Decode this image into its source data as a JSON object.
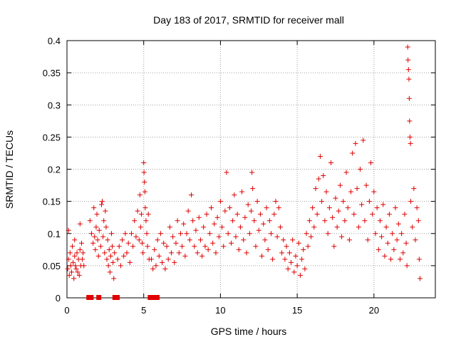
{
  "chart_data": {
    "type": "scatter",
    "title": "Day 183 of 2017, SRMTID for receiver mall",
    "xlabel": "GPS time / hours",
    "ylabel": "SRMTID / TECUs",
    "xlim": [
      0,
      24
    ],
    "ylim": [
      0,
      0.4
    ],
    "x_ticks": [
      0,
      5,
      10,
      15,
      20
    ],
    "x_tick_labels": [
      "0",
      "5",
      "10",
      "15",
      "20"
    ],
    "y_ticks": [
      0,
      0.05,
      0.1,
      0.15,
      0.2,
      0.25,
      0.3,
      0.35,
      0.4
    ],
    "y_tick_labels": [
      "0",
      "0.05",
      "0.1",
      "0.15",
      "0.2",
      "0.25",
      "0.3",
      "0.35",
      "0.4"
    ],
    "grid": true,
    "marker": "+",
    "series": [
      {
        "name": "SRMTID",
        "color": "#e00000",
        "points": [
          [
            0.05,
            0.045
          ],
          [
            0.1,
            0.06
          ],
          [
            0.15,
            0.035
          ],
          [
            0.2,
            0.07
          ],
          [
            0.25,
            0.05
          ],
          [
            0.3,
            0.04
          ],
          [
            0.35,
            0.08
          ],
          [
            0.4,
            0.055
          ],
          [
            0.45,
            0.03
          ],
          [
            0.5,
            0.065
          ],
          [
            0.55,
            0.05
          ],
          [
            0.6,
            0.045
          ],
          [
            0.65,
            0.07
          ],
          [
            0.7,
            0.04
          ],
          [
            0.75,
            0.06
          ],
          [
            0.8,
            0.035
          ],
          [
            0.85,
            0.075
          ],
          [
            0.9,
            0.05
          ],
          [
            0.95,
            0.085
          ],
          [
            1.0,
            0.06
          ],
          [
            0.1,
            0.105
          ],
          [
            0.5,
            0.09
          ],
          [
            0.85,
            0.115
          ],
          [
            1.05,
            0.07
          ],
          [
            1.1,
            0.05
          ],
          [
            1.5,
            0.12
          ],
          [
            1.6,
            0.1
          ],
          [
            1.7,
            0.085
          ],
          [
            1.75,
            0.14
          ],
          [
            1.8,
            0.095
          ],
          [
            1.85,
            0.075
          ],
          [
            1.9,
            0.11
          ],
          [
            1.95,
            0.13
          ],
          [
            2.0,
            0.09
          ],
          [
            2.05,
            0.065
          ],
          [
            2.1,
            0.105
          ],
          [
            2.2,
            0.08
          ],
          [
            2.25,
            0.145
          ],
          [
            2.3,
            0.15
          ],
          [
            2.35,
            0.095
          ],
          [
            2.4,
            0.12
          ],
          [
            2.45,
            0.07
          ],
          [
            2.5,
            0.135
          ],
          [
            2.55,
            0.11
          ],
          [
            2.6,
            0.06
          ],
          [
            2.65,
            0.09
          ],
          [
            2.7,
            0.05
          ],
          [
            2.75,
            0.075
          ],
          [
            2.8,
            0.04
          ],
          [
            2.85,
            0.065
          ],
          [
            2.9,
            0.1
          ],
          [
            2.95,
            0.08
          ],
          [
            3.0,
            0.055
          ],
          [
            3.05,
            0.03
          ],
          [
            3.1,
            0.07
          ],
          [
            3.3,
            0.06
          ],
          [
            3.4,
            0.08
          ],
          [
            3.5,
            0.05
          ],
          [
            3.6,
            0.09
          ],
          [
            3.7,
            0.065
          ],
          [
            3.8,
            0.1
          ],
          [
            3.9,
            0.07
          ],
          [
            4.0,
            0.085
          ],
          [
            4.1,
            0.055
          ],
          [
            4.2,
            0.1
          ],
          [
            4.3,
            0.08
          ],
          [
            4.4,
            0.12
          ],
          [
            4.5,
            0.095
          ],
          [
            4.6,
            0.135
          ],
          [
            4.7,
            0.09
          ],
          [
            4.75,
            0.16
          ],
          [
            4.8,
            0.11
          ],
          [
            4.85,
            0.13
          ],
          [
            4.9,
            0.085
          ],
          [
            4.95,
            0.07
          ],
          [
            5.0,
            0.21
          ],
          [
            5.02,
            0.195
          ],
          [
            5.05,
            0.18
          ],
          [
            5.08,
            0.165
          ],
          [
            5.1,
            0.14
          ],
          [
            5.15,
            0.12
          ],
          [
            5.2,
            0.1
          ],
          [
            5.25,
            0.08
          ],
          [
            5.3,
            0.13
          ],
          [
            5.35,
            0.06
          ],
          [
            5.5,
            0.06
          ],
          [
            5.6,
            0.045
          ],
          [
            5.7,
            0.075
          ],
          [
            5.8,
            0.05
          ],
          [
            5.9,
            0.09
          ],
          [
            6.0,
            0.065
          ],
          [
            6.1,
            0.1
          ],
          [
            6.2,
            0.055
          ],
          [
            6.3,
            0.085
          ],
          [
            6.4,
            0.045
          ],
          [
            6.5,
            0.08
          ],
          [
            6.6,
            0.06
          ],
          [
            6.7,
            0.11
          ],
          [
            6.8,
            0.07
          ],
          [
            6.9,
            0.095
          ],
          [
            7.0,
            0.055
          ],
          [
            7.1,
            0.085
          ],
          [
            7.2,
            0.12
          ],
          [
            7.3,
            0.07
          ],
          [
            7.4,
            0.1
          ],
          [
            7.5,
            0.08
          ],
          [
            7.6,
            0.115
          ],
          [
            7.7,
            0.065
          ],
          [
            7.8,
            0.1
          ],
          [
            7.9,
            0.135
          ],
          [
            8.0,
            0.09
          ],
          [
            8.1,
            0.16
          ],
          [
            8.2,
            0.12
          ],
          [
            8.3,
            0.08
          ],
          [
            8.4,
            0.105
          ],
          [
            8.5,
            0.07
          ],
          [
            8.6,
            0.125
          ],
          [
            8.7,
            0.09
          ],
          [
            8.8,
            0.065
          ],
          [
            8.9,
            0.11
          ],
          [
            9.0,
            0.08
          ],
          [
            9.1,
            0.13
          ],
          [
            9.2,
            0.075
          ],
          [
            9.3,
            0.1
          ],
          [
            9.4,
            0.14
          ],
          [
            9.5,
            0.085
          ],
          [
            9.6,
            0.115
          ],
          [
            9.7,
            0.07
          ],
          [
            9.8,
            0.125
          ],
          [
            9.9,
            0.095
          ],
          [
            10.0,
            0.15
          ],
          [
            10.1,
            0.11
          ],
          [
            10.2,
            0.08
          ],
          [
            10.3,
            0.135
          ],
          [
            10.4,
            0.195
          ],
          [
            10.5,
            0.1
          ],
          [
            10.6,
            0.14
          ],
          [
            10.7,
            0.085
          ],
          [
            10.8,
            0.12
          ],
          [
            10.9,
            0.16
          ],
          [
            11.0,
            0.095
          ],
          [
            11.1,
            0.13
          ],
          [
            11.2,
            0.075
          ],
          [
            11.3,
            0.11
          ],
          [
            11.4,
            0.165
          ],
          [
            11.5,
            0.09
          ],
          [
            11.6,
            0.125
          ],
          [
            11.7,
            0.07
          ],
          [
            11.8,
            0.145
          ],
          [
            11.9,
            0.1
          ],
          [
            12.0,
            0.135
          ],
          [
            12.05,
            0.195
          ],
          [
            12.1,
            0.17
          ],
          [
            12.2,
            0.12
          ],
          [
            12.3,
            0.08
          ],
          [
            12.4,
            0.15
          ],
          [
            12.5,
            0.105
          ],
          [
            12.6,
            0.13
          ],
          [
            12.7,
            0.065
          ],
          [
            12.8,
            0.115
          ],
          [
            12.9,
            0.09
          ],
          [
            13.0,
            0.14
          ],
          [
            13.1,
            0.075
          ],
          [
            13.2,
            0.12
          ],
          [
            13.3,
            0.1
          ],
          [
            13.4,
            0.06
          ],
          [
            13.5,
            0.13
          ],
          [
            13.6,
            0.15
          ],
          [
            13.7,
            0.095
          ],
          [
            13.8,
            0.14
          ],
          [
            13.9,
            0.11
          ],
          [
            14.0,
            0.07
          ],
          [
            14.1,
            0.09
          ],
          [
            14.2,
            0.06
          ],
          [
            14.3,
            0.08
          ],
          [
            14.4,
            0.045
          ],
          [
            14.5,
            0.07
          ],
          [
            14.6,
            0.055
          ],
          [
            14.7,
            0.09
          ],
          [
            14.8,
            0.04
          ],
          [
            14.9,
            0.065
          ],
          [
            15.0,
            0.05
          ],
          [
            15.1,
            0.085
          ],
          [
            15.2,
            0.035
          ],
          [
            15.3,
            0.06
          ],
          [
            15.4,
            0.075
          ],
          [
            15.5,
            0.045
          ],
          [
            15.6,
            0.1
          ],
          [
            15.7,
            0.08
          ],
          [
            15.8,
            0.12
          ],
          [
            15.9,
            0.095
          ],
          [
            16.0,
            0.14
          ],
          [
            16.1,
            0.11
          ],
          [
            16.2,
            0.17
          ],
          [
            16.3,
            0.13
          ],
          [
            16.4,
            0.185
          ],
          [
            16.5,
            0.22
          ],
          [
            16.6,
            0.15
          ],
          [
            16.7,
            0.19
          ],
          [
            16.8,
            0.12
          ],
          [
            16.9,
            0.165
          ],
          [
            17.0,
            0.1
          ],
          [
            17.1,
            0.14
          ],
          [
            17.2,
            0.21
          ],
          [
            17.3,
            0.125
          ],
          [
            17.4,
            0.08
          ],
          [
            17.5,
            0.155
          ],
          [
            17.6,
            0.11
          ],
          [
            17.7,
            0.135
          ],
          [
            17.8,
            0.175
          ],
          [
            17.9,
            0.095
          ],
          [
            18.0,
            0.15
          ],
          [
            18.1,
            0.12
          ],
          [
            18.2,
            0.195
          ],
          [
            18.3,
            0.14
          ],
          [
            18.4,
            0.09
          ],
          [
            18.5,
            0.165
          ],
          [
            18.6,
            0.225
          ],
          [
            18.7,
            0.13
          ],
          [
            18.8,
            0.24
          ],
          [
            18.9,
            0.17
          ],
          [
            19.0,
            0.11
          ],
          [
            19.1,
            0.2
          ],
          [
            19.2,
            0.145
          ],
          [
            19.3,
            0.245
          ],
          [
            19.4,
            0.12
          ],
          [
            19.5,
            0.175
          ],
          [
            19.6,
            0.09
          ],
          [
            19.7,
            0.15
          ],
          [
            19.8,
            0.21
          ],
          [
            19.9,
            0.13
          ],
          [
            20.0,
            0.165
          ],
          [
            20.1,
            0.1
          ],
          [
            20.2,
            0.14
          ],
          [
            20.3,
            0.075
          ],
          [
            20.4,
            0.12
          ],
          [
            20.5,
            0.095
          ],
          [
            20.6,
            0.145
          ],
          [
            20.7,
            0.065
          ],
          [
            20.8,
            0.11
          ],
          [
            20.9,
            0.085
          ],
          [
            21.0,
            0.13
          ],
          [
            21.1,
            0.06
          ],
          [
            21.2,
            0.1
          ],
          [
            21.3,
            0.075
          ],
          [
            21.4,
            0.14
          ],
          [
            21.5,
            0.09
          ],
          [
            21.6,
            0.115
          ],
          [
            21.7,
            0.06
          ],
          [
            21.8,
            0.1
          ],
          [
            21.9,
            0.07
          ],
          [
            22.0,
            0.13
          ],
          [
            22.1,
            0.085
          ],
          [
            22.15,
            0.05
          ],
          [
            22.2,
            0.39
          ],
          [
            22.22,
            0.37
          ],
          [
            22.25,
            0.355
          ],
          [
            22.28,
            0.34
          ],
          [
            22.3,
            0.31
          ],
          [
            22.32,
            0.275
          ],
          [
            22.35,
            0.25
          ],
          [
            22.38,
            0.24
          ],
          [
            22.4,
            0.15
          ],
          [
            22.5,
            0.11
          ],
          [
            22.6,
            0.17
          ],
          [
            22.7,
            0.09
          ],
          [
            22.8,
            0.14
          ],
          [
            22.9,
            0.12
          ],
          [
            22.95,
            0.06
          ],
          [
            23.0,
            0.03
          ]
        ]
      }
    ],
    "x_markers": [
      1.4,
      1.55,
      2.05,
      3.1,
      3.25,
      5.4,
      5.55,
      5.75,
      5.85
    ]
  }
}
